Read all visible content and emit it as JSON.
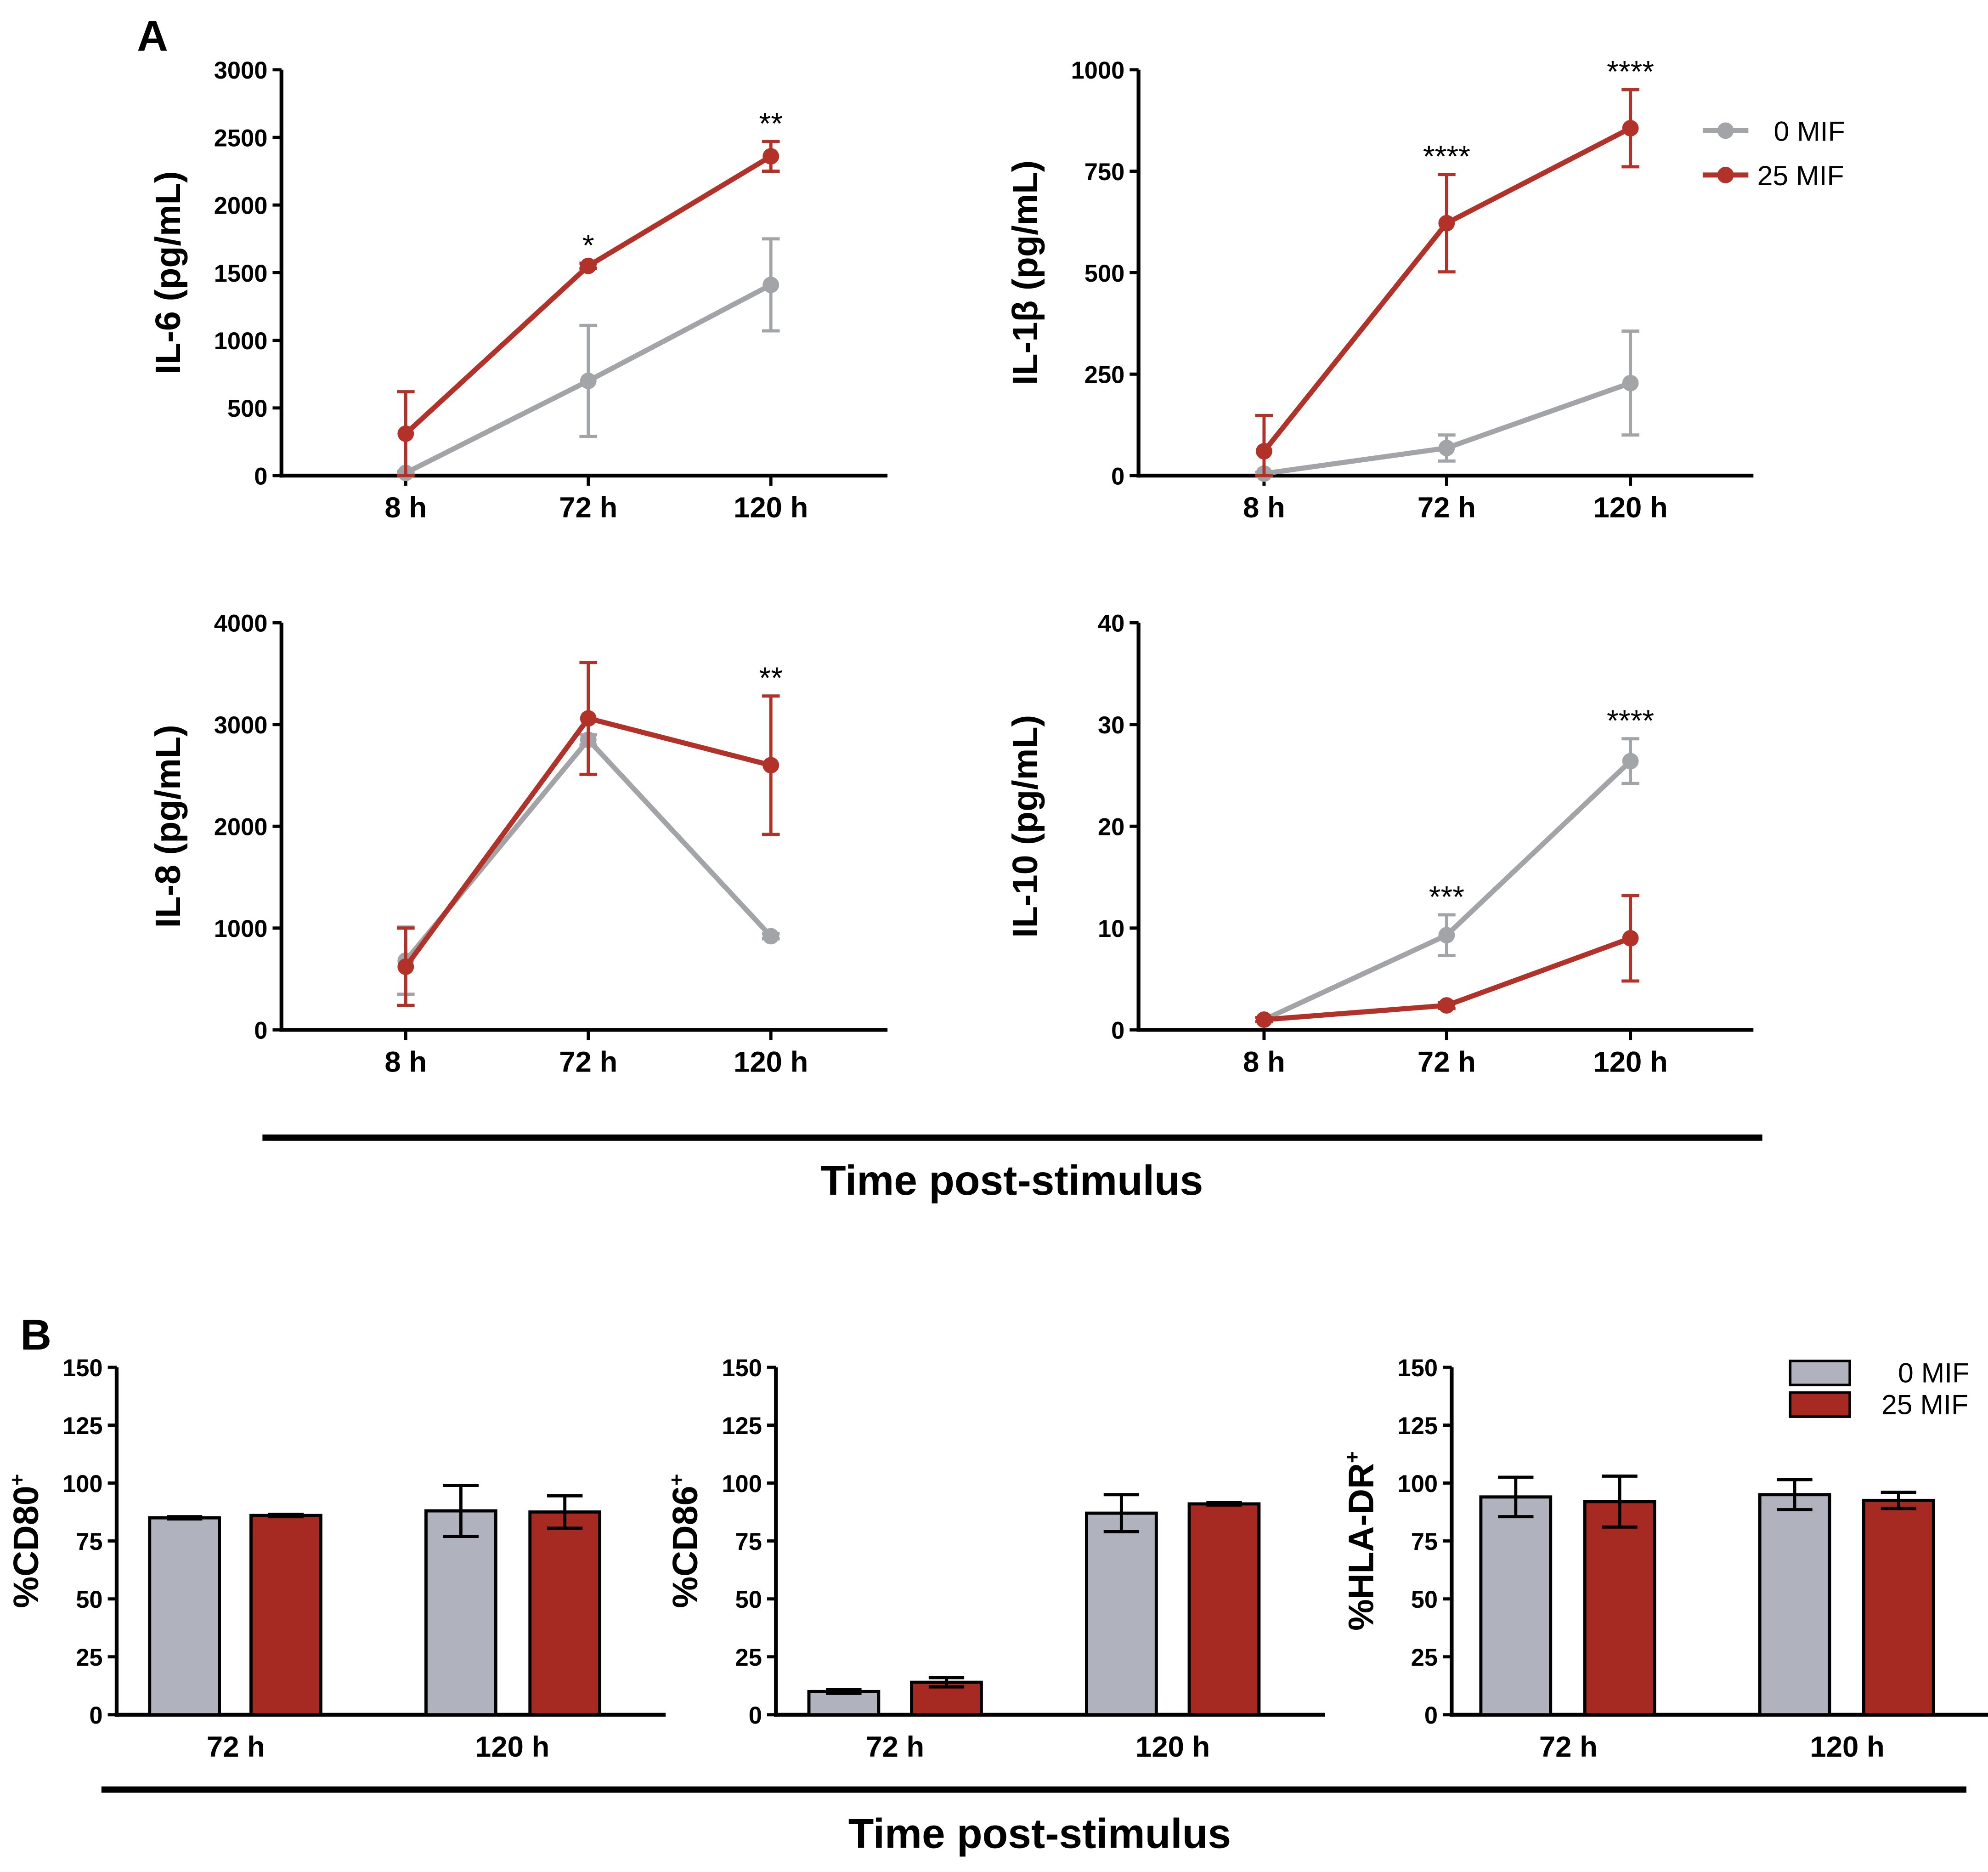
{
  "panel_a_label": "A",
  "panel_b_label": "B",
  "section_xlabel_a": "Time post-stimulus",
  "section_xlabel_b": "Time post-stimulus",
  "colors": {
    "grey_line": "#A2A4A7",
    "red_line": "#B23128",
    "grey_bar": "#B0B3BE",
    "red_bar": "#A72A22",
    "axis": "#000000"
  },
  "legend_a": [
    "0 MIF",
    "25 MIF"
  ],
  "legend_b": [
    "0 MIF",
    "25 MIF"
  ],
  "chart_data": [
    {
      "id": "il6",
      "type": "line",
      "ylabel": "IL-6 (pg/mL)",
      "ylim": [
        0,
        3000
      ],
      "yticks": [
        "0",
        "500",
        "1000",
        "1500",
        "2000",
        "2500",
        "3000"
      ],
      "categories": [
        "8 h",
        "72 h",
        "120 h"
      ],
      "series": [
        {
          "name": "0 MIF",
          "values": [
            20,
            700,
            1410
          ],
          "errors": [
            10,
            410,
            340
          ]
        },
        {
          "name": "25 MIF",
          "values": [
            310,
            1550,
            2360
          ],
          "errors": [
            310,
            20,
            110
          ]
        }
      ],
      "annotations": [
        "",
        "*",
        "**"
      ]
    },
    {
      "id": "il1b",
      "type": "line",
      "ylabel": "IL-1β (pg/mL)",
      "ylim": [
        0,
        1000
      ],
      "yticks": [
        "0",
        "250",
        "500",
        "750",
        "1000"
      ],
      "categories": [
        "8 h",
        "72 h",
        "120 h"
      ],
      "series": [
        {
          "name": "0 MIF",
          "values": [
            5,
            68,
            228
          ],
          "errors": [
            3,
            32,
            128
          ]
        },
        {
          "name": "25 MIF",
          "values": [
            60,
            622,
            856
          ],
          "errors": [
            88,
            120,
            95
          ]
        }
      ],
      "annotations": [
        "",
        "****",
        "****"
      ]
    },
    {
      "id": "il8",
      "type": "line",
      "ylabel": "IL-8 (pg/mL)",
      "ylim": [
        0,
        4000
      ],
      "yticks": [
        "0",
        "1000",
        "2000",
        "3000",
        "4000"
      ],
      "categories": [
        "8 h",
        "72 h",
        "120 h"
      ],
      "series": [
        {
          "name": "0 MIF",
          "values": [
            680,
            2850,
            920
          ],
          "errors": [
            330,
            50,
            25
          ]
        },
        {
          "name": "25 MIF",
          "values": [
            620,
            3060,
            2600
          ],
          "errors": [
            380,
            550,
            680
          ]
        }
      ],
      "annotations": [
        "",
        "",
        "**"
      ]
    },
    {
      "id": "il10",
      "type": "line",
      "ylabel": "IL-10 (pg/mL)",
      "ylim": [
        0,
        40
      ],
      "yticks": [
        "0",
        "10",
        "20",
        "30",
        "40"
      ],
      "categories": [
        "8 h",
        "72 h",
        "120 h"
      ],
      "series": [
        {
          "name": "0 MIF",
          "values": [
            1,
            9.3,
            26.4
          ],
          "errors": [
            0.2,
            2,
            2.2
          ]
        },
        {
          "name": "25 MIF",
          "values": [
            1,
            2.4,
            9
          ],
          "errors": [
            0.2,
            0.3,
            4.2
          ]
        }
      ],
      "annotations": [
        "",
        "***",
        "****"
      ]
    },
    {
      "id": "cd80",
      "type": "bar",
      "ylabel_main": "%CD80",
      "ylabel_sup": "+",
      "ylim": [
        0,
        150
      ],
      "yticks": [
        "0",
        "25",
        "50",
        "75",
        "100",
        "125",
        "150"
      ],
      "categories": [
        "72 h",
        "120 h"
      ],
      "series": [
        {
          "name": "0 MIF",
          "values": [
            85,
            88
          ],
          "errors": [
            0.5,
            11
          ]
        },
        {
          "name": "25 MIF",
          "values": [
            86,
            87.5
          ],
          "errors": [
            0.5,
            7
          ]
        }
      ]
    },
    {
      "id": "cd86",
      "type": "bar",
      "ylabel_main": "%CD86",
      "ylabel_sup": "+",
      "ylim": [
        0,
        150
      ],
      "yticks": [
        "0",
        "25",
        "50",
        "75",
        "100",
        "125",
        "150"
      ],
      "categories": [
        "72 h",
        "120 h"
      ],
      "series": [
        {
          "name": "0 MIF",
          "values": [
            10,
            87
          ],
          "errors": [
            0.8,
            8
          ]
        },
        {
          "name": "25 MIF",
          "values": [
            14,
            91
          ],
          "errors": [
            2,
            0.5
          ]
        }
      ]
    },
    {
      "id": "hladr",
      "type": "bar",
      "ylabel_main": "%HLA-DR",
      "ylabel_sup": "+",
      "ylim": [
        0,
        150
      ],
      "yticks": [
        "0",
        "25",
        "50",
        "75",
        "100",
        "125",
        "150"
      ],
      "categories": [
        "72 h",
        "120 h"
      ],
      "series": [
        {
          "name": "0 MIF",
          "values": [
            94,
            95
          ],
          "errors": [
            8.5,
            6.5
          ]
        },
        {
          "name": "25 MIF",
          "values": [
            92,
            92.5
          ],
          "errors": [
            11,
            3.5
          ]
        }
      ]
    }
  ]
}
